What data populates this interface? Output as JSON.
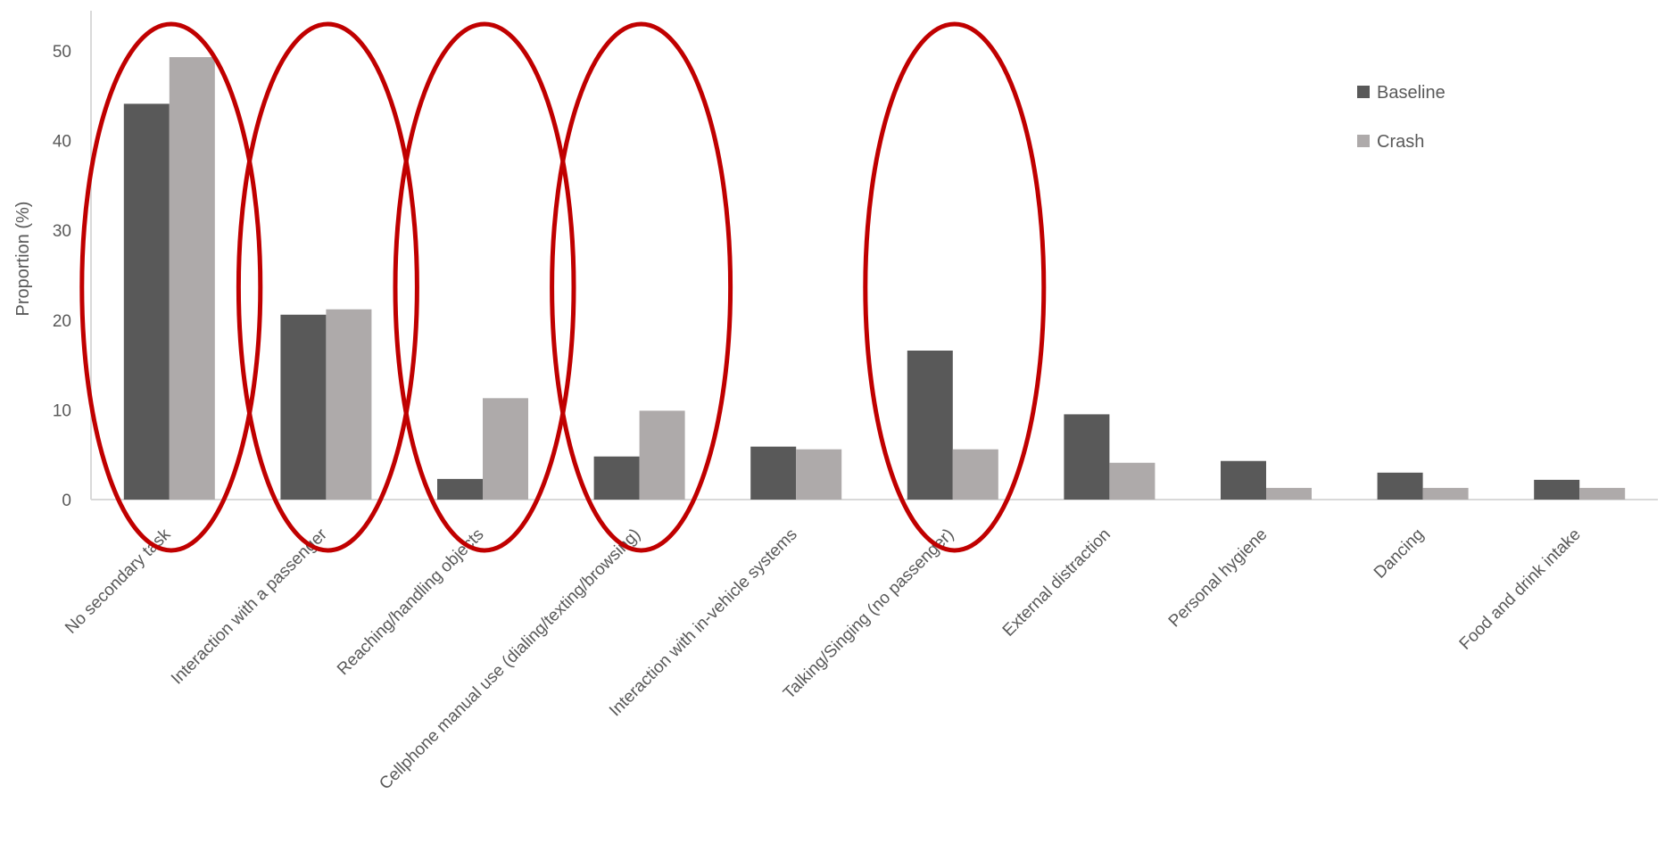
{
  "chart_data": {
    "type": "bar",
    "title": "",
    "xlabel": "",
    "ylabel": "Proportion (%)",
    "ylim": [
      0,
      55
    ],
    "yticks": [
      0,
      10,
      20,
      30,
      40,
      50
    ],
    "grid": false,
    "legend_position": "top-right",
    "categories": [
      "No secondary task",
      "Interaction with a passenger",
      "Reaching/handling objects",
      "Cellphone manual use (dialing/texting/browsing)",
      "Interaction with in-vehicle systems",
      "Talking/Singing (no passenger)",
      "External distraction",
      "Personal hygiene",
      "Dancing",
      "Food and drink intake"
    ],
    "series": [
      {
        "name": "Baseline",
        "color": "#595959",
        "values": [
          44.1,
          20.6,
          2.3,
          4.8,
          5.9,
          16.6,
          9.5,
          4.3,
          3.0,
          2.2
        ]
      },
      {
        "name": "Crash",
        "color": "#aeaaaa",
        "values": [
          49.3,
          21.2,
          11.3,
          9.9,
          5.6,
          5.6,
          4.1,
          1.3,
          1.3,
          1.3
        ]
      }
    ],
    "annotations": {
      "type": "ellipse",
      "color": "#c00000",
      "highlighted_categories": [
        0,
        1,
        2,
        3,
        5
      ]
    }
  }
}
